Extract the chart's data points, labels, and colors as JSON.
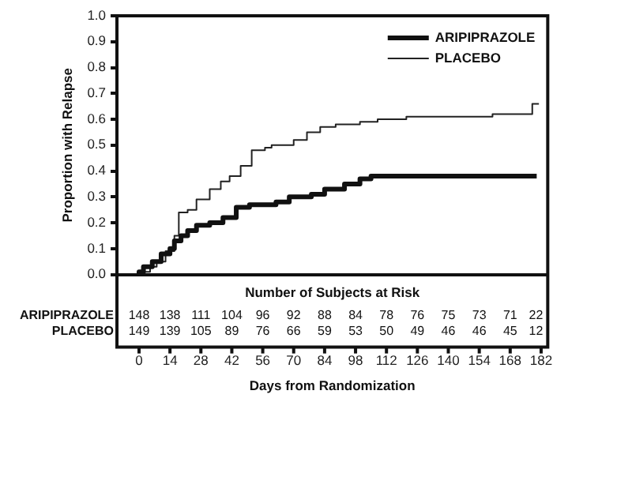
{
  "chart_data": {
    "type": "step",
    "xlabel": "Days from Randomization",
    "ylabel": "Proportion with Relapse",
    "series": [
      {
        "name": "ARIPIPRAZOLE",
        "color": "#111111",
        "x": [
          0,
          2,
          6,
          10,
          14,
          16,
          19,
          22,
          26,
          32,
          38,
          44,
          50,
          62,
          68,
          78,
          84,
          93,
          100,
          105,
          143,
          180
        ],
        "values": [
          0,
          0.01,
          0.03,
          0.05,
          0.08,
          0.1,
          0.13,
          0.15,
          0.17,
          0.19,
          0.2,
          0.22,
          0.26,
          0.27,
          0.28,
          0.3,
          0.31,
          0.33,
          0.35,
          0.37,
          0.38,
          0.38
        ]
      },
      {
        "name": "PLACEBO",
        "color": "#222222",
        "x": [
          0,
          5,
          8,
          12,
          16,
          18,
          22,
          26,
          32,
          37,
          41,
          46,
          51,
          57,
          60,
          70,
          76,
          82,
          89,
          100,
          108,
          121,
          160,
          178,
          181
        ],
        "values": [
          0,
          0.01,
          0.03,
          0.05,
          0.09,
          0.15,
          0.24,
          0.25,
          0.29,
          0.33,
          0.36,
          0.38,
          0.42,
          0.48,
          0.49,
          0.5,
          0.52,
          0.55,
          0.57,
          0.58,
          0.59,
          0.6,
          0.61,
          0.62,
          0.66
        ]
      }
    ],
    "xlim": [
      -10,
      185
    ],
    "xticks": [
      0,
      14,
      28,
      42,
      56,
      70,
      84,
      98,
      112,
      126,
      140,
      154,
      168,
      182
    ],
    "ylim": [
      0,
      1
    ],
    "yticks": [
      {
        "value": 0,
        "label": "0.0"
      },
      {
        "value": 0.1,
        "label": "0.1"
      },
      {
        "value": 0.2,
        "label": "0.2"
      },
      {
        "value": 0.3,
        "label": "0.3"
      },
      {
        "value": 0.4,
        "label": "0.4"
      },
      {
        "value": 0.5,
        "label": "0.5"
      },
      {
        "value": 0.6,
        "label": "0.6"
      },
      {
        "value": 0.7,
        "label": "0.7"
      },
      {
        "value": 0.8,
        "label": "0.8"
      },
      {
        "value": 0.9,
        "label": "0.9"
      },
      {
        "value": 1,
        "label": "1.0"
      }
    ],
    "annotations": [
      "Number of Subjects at Risk",
      "148 138 111 104 96 92 88 84 78 76 75 73 71 22",
      "149 139 105 89 76 66 59 53 50 49 46 46 45 12"
    ],
    "legend": "top right",
    "grid": false,
    "marker": "none",
    "line_style": "solid"
  }
}
